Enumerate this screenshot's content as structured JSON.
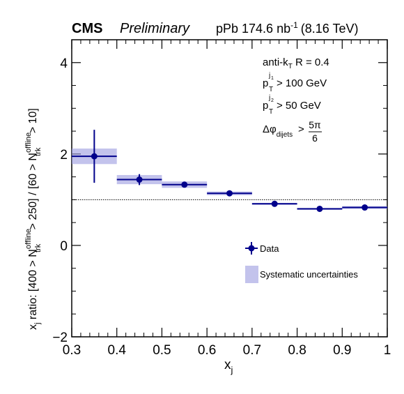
{
  "header": {
    "experiment": "CMS",
    "status": "Preliminary",
    "dataset_prefix": "pPb 174.6 nb",
    "dataset_exp": "-1",
    "dataset_suffix": "(8.16 TeV)"
  },
  "cuts": {
    "jet_algo_pre": "anti-k",
    "jet_algo_sub": "T",
    "jet_algo_post": " R = 0.4",
    "pt1_p": "p",
    "pt1_sup": "j",
    "pt1_supsub": "1",
    "pt1_sub": "T",
    "pt1_cut": "> 100 GeV",
    "pt2_p": "p",
    "pt2_sup": "j",
    "pt2_supsub": "2",
    "pt2_sub": "T",
    "pt2_cut": "> 50 GeV",
    "dphi_main": "Δφ",
    "dphi_sub": "dijets",
    "dphi_gt": ">",
    "dphi_num": "5π",
    "dphi_den": "6"
  },
  "legend": {
    "data_label": "Data",
    "syst_label": "Systematic uncertainties"
  },
  "axes": {
    "xlabel_main": "x",
    "xlabel_sub": "j",
    "ylabel": {
      "p1_main": "x",
      "p1_sub": "j",
      "p2": " ratio: [400 > N",
      "p3_sup": "offline",
      "p3_sub": "trk",
      "p4": " > 250] / [60 > N",
      "p5_sup": "offline",
      "p5_sub": "trk",
      "p6": " > 10]"
    }
  },
  "colors": {
    "marker": "#00008b",
    "band": "#9b9be0",
    "reference_line": "#000000"
  },
  "chart_data": {
    "type": "scatter",
    "xlim": [
      0.3,
      1.0
    ],
    "ylim": [
      -2,
      4.5
    ],
    "x_ticks": [
      "0.3",
      "0.4",
      "0.5",
      "0.6",
      "0.7",
      "0.8",
      "0.9",
      "1"
    ],
    "y_ticks": [
      "−2",
      "0",
      "2",
      "4"
    ],
    "reference_line_y": 1.0,
    "legend_position": "bottom-right",
    "series": [
      {
        "name": "Data",
        "bins": [
          {
            "xlow": 0.3,
            "xhigh": 0.4,
            "x": 0.35,
            "y": 1.95,
            "stat_err_low": 0.58,
            "stat_err_high": 0.58,
            "syst_err": 0.17
          },
          {
            "xlow": 0.4,
            "xhigh": 0.5,
            "x": 0.45,
            "y": 1.44,
            "stat_err_low": 0.12,
            "stat_err_high": 0.12,
            "syst_err": 0.1
          },
          {
            "xlow": 0.5,
            "xhigh": 0.6,
            "x": 0.55,
            "y": 1.33,
            "stat_err_low": 0.05,
            "stat_err_high": 0.05,
            "syst_err": 0.07
          },
          {
            "xlow": 0.6,
            "xhigh": 0.7,
            "x": 0.65,
            "y": 1.14,
            "stat_err_low": 0.03,
            "stat_err_high": 0.03,
            "syst_err": 0.04
          },
          {
            "xlow": 0.7,
            "xhigh": 0.8,
            "x": 0.75,
            "y": 0.91,
            "stat_err_low": 0.02,
            "stat_err_high": 0.02,
            "syst_err": 0.02
          },
          {
            "xlow": 0.8,
            "xhigh": 0.9,
            "x": 0.85,
            "y": 0.8,
            "stat_err_low": 0.02,
            "stat_err_high": 0.02,
            "syst_err": 0.02
          },
          {
            "xlow": 0.9,
            "xhigh": 1.0,
            "x": 0.95,
            "y": 0.83,
            "stat_err_low": 0.02,
            "stat_err_high": 0.02,
            "syst_err": 0.03
          }
        ]
      }
    ]
  }
}
